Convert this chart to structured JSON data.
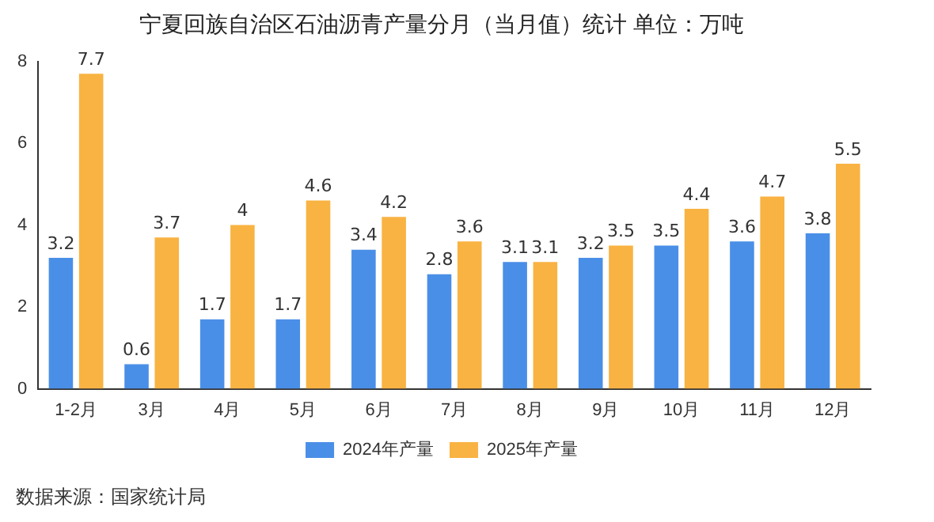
{
  "chart_data": {
    "type": "bar",
    "title": "宁夏回族自治区石油沥青产量分月（当月值）统计 单位：万吨",
    "categories": [
      "1-2月",
      "3月",
      "4月",
      "5月",
      "6月",
      "7月",
      "8月",
      "9月",
      "10月",
      "11月",
      "12月"
    ],
    "series": [
      {
        "name": "2024年产量",
        "color": "#4a8fe7",
        "values": [
          3.2,
          0.6,
          1.7,
          1.7,
          3.4,
          2.8,
          3.1,
          3.2,
          3.5,
          3.6,
          3.8
        ]
      },
      {
        "name": "2025年产量",
        "color": "#f9b342",
        "values": [
          7.7,
          3.7,
          4,
          4.6,
          4.2,
          3.6,
          3.1,
          3.5,
          4.4,
          4.7,
          5.5
        ]
      }
    ],
    "ylim": [
      0,
      8
    ],
    "yticks": [
      0,
      2,
      4,
      6,
      8
    ],
    "grid": false,
    "legend": "bottom",
    "data_labels": true,
    "annotations": [
      "数据来源：国家统计局"
    ]
  }
}
